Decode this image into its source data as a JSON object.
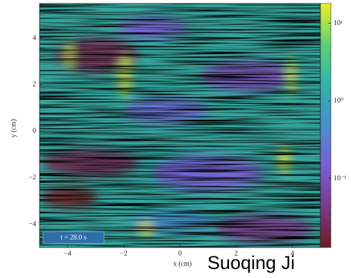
{
  "chart_data": {
    "type": "field-map",
    "xlabel": "x (cm)",
    "ylabel": "y (cm)",
    "xlim": [
      -5,
      5
    ],
    "ylim": [
      -5,
      5.5
    ],
    "xticks": [
      {
        "value": -4,
        "label": "−4"
      },
      {
        "value": -2,
        "label": "−2"
      },
      0,
      2,
      4
    ],
    "yticks": [
      {
        "value": -4,
        "label": "−4"
      },
      {
        "value": -2,
        "label": "−2"
      },
      0,
      2,
      4
    ],
    "colorbar": {
      "scale": "log",
      "lim": [
        0.013,
        18
      ],
      "ticks": [
        {
          "value": 0.1,
          "label": "10⁻¹"
        },
        {
          "value": 1,
          "label": "10⁰"
        },
        {
          "value": 10,
          "label": "10¹"
        }
      ],
      "colormap": [
        "#6e1a24",
        "#7a3a8a",
        "#7a5ed6",
        "#4a8fd0",
        "#2fb3a8",
        "#5fd07a",
        "#f0f020"
      ]
    },
    "annotation": "t = 28.0 s",
    "caption": "Suoqing Ji"
  }
}
